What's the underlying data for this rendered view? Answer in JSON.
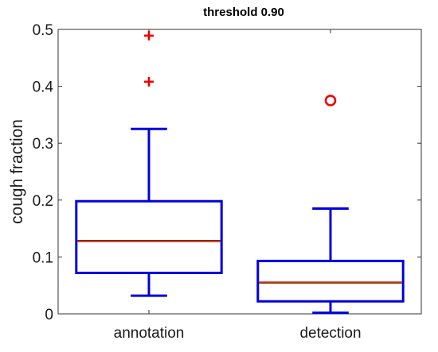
{
  "chart_data": {
    "type": "box",
    "title": "threshold 0.90",
    "xlabel": "",
    "ylabel": "cough fraction",
    "ylim": [
      0,
      0.5
    ],
    "yticks": [
      0,
      0.1,
      0.2,
      0.3,
      0.4,
      0.5
    ],
    "ytick_labels": [
      "0",
      "0.1",
      "0.2",
      "0.3",
      "0.4",
      "0.5"
    ],
    "categories": [
      "annotation",
      "detection"
    ],
    "boxes": [
      {
        "category": "annotation",
        "whisker_low": 0.032,
        "q1": 0.072,
        "median": 0.128,
        "q3": 0.198,
        "whisker_high": 0.325,
        "outliers": [
          0.408,
          0.489
        ],
        "outlier_marker": "plus"
      },
      {
        "category": "detection",
        "whisker_low": 0.002,
        "q1": 0.022,
        "median": 0.055,
        "q3": 0.093,
        "whisker_high": 0.185,
        "outliers": [
          0.375
        ],
        "outlier_marker": "circle"
      }
    ],
    "colors": {
      "box": "#0000dd",
      "median": "#c00000",
      "median_inner": "#5a7a00",
      "outlier": "#ee0000",
      "axis": "#333333"
    },
    "grid": false
  }
}
